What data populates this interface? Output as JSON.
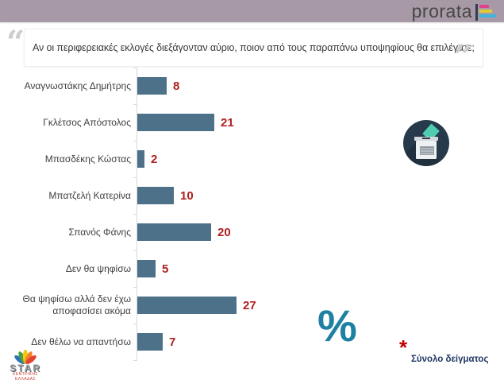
{
  "header": {
    "brand_text": "prorata",
    "band_color": "#a79aa6",
    "logo_colors": {
      "vertical_bar": "#2c3e50",
      "top_bar": "#e0418c",
      "middle_bar": "#dfc93b",
      "bottom_bar": "#41b4dc"
    }
  },
  "question": {
    "open_quote": "“",
    "text": "Αν οι περιφερειακές εκλογές διεξάγονταν αύριο, ποιον από τους παραπάνω υποψηφίους θα επιλέγατε;",
    "close_quote": "”"
  },
  "chart_data": {
    "type": "bar",
    "orientation": "horizontal",
    "categories": [
      "Αναγνωστάκης Δημήτρης",
      "Γκλέτσος Απόστολος",
      "Μπασδέκης Κώστας",
      "Μπατζελή Κατερίνα",
      "Σπανός Φάνης",
      "Δεν θα ψηφίσω",
      "Θα ψηφίσω αλλά δεν έχω αποφασίσει ακόμα",
      "Δεν θέλω να απαντήσω"
    ],
    "values": [
      8,
      21,
      2,
      10,
      20,
      5,
      27,
      7
    ],
    "unit": "%",
    "xlim": [
      0,
      30
    ],
    "grid": false,
    "legend": false,
    "bar_color": "#4d7189",
    "value_label_color": "#b0201f",
    "axis_color": "#d9d9d9"
  },
  "annotations": {
    "percent_symbol": "%",
    "percent_color": "#1e81a4",
    "footnote_marker": "*",
    "footnote_marker_color": "#c00000",
    "footnote_text": "Σύνολο δείγματος",
    "footnote_text_color": "#1f3864"
  },
  "ballot_icon": {
    "circle_color": "#273a4b",
    "paper_color": "#4fcdb0",
    "box_color": "#eef1f2"
  },
  "footer_logo": {
    "name": "STAR",
    "caption": "ΚΕΝΤΡΙΚΗΣ ΕΛΛΑΔΑΣ"
  }
}
